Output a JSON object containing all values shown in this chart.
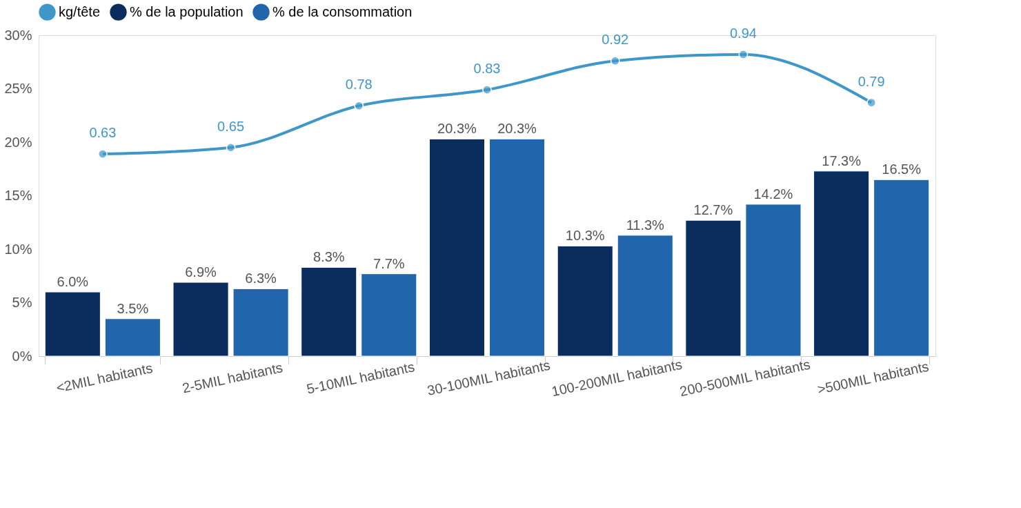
{
  "chart_data": {
    "type": "bar",
    "categories": [
      "<2MIL habitants",
      "2-5MIL habitants",
      "5-10MIL habitants",
      "30-100MIL habitants",
      "100-200MIL habitants",
      "200-500MIL habitants",
      ">500MIL habitants"
    ],
    "series": [
      {
        "name": "kg/tête",
        "type": "line",
        "axis": "y2",
        "color": "#3f97c9",
        "values": [
          0.63,
          0.65,
          0.78,
          0.83,
          0.92,
          0.94,
          0.79
        ],
        "data_labels": true
      },
      {
        "name": "% de la population",
        "color": "#0a2d5e",
        "values": [
          6.0,
          6.9,
          8.3,
          20.3,
          10.3,
          12.7,
          17.3
        ],
        "value_labels": [
          "6.0%",
          "6.9%",
          "8.3%",
          "20.3%",
          "10.3%",
          "12.7%",
          "17.3%"
        ]
      },
      {
        "name": "% de la consommation",
        "color": "#2166ac",
        "values": [
          3.5,
          6.3,
          7.7,
          20.3,
          11.3,
          14.2,
          16.5
        ],
        "value_labels": [
          "3.5%",
          "6.3%",
          "7.7%",
          "20.3%",
          "11.3%",
          "14.2%",
          "16.5%"
        ]
      }
    ],
    "ylim": [
      0,
      30
    ],
    "yticks": [
      {
        "value": 0,
        "label": "0%"
      },
      {
        "value": 5,
        "label": "5%"
      },
      {
        "value": 10,
        "label": "10%"
      },
      {
        "value": 15,
        "label": "15%"
      },
      {
        "value": 20,
        "label": "20%"
      },
      {
        "value": 25,
        "label": "25%"
      },
      {
        "value": 30,
        "label": "30%"
      }
    ],
    "y2lim": [
      0,
      1
    ],
    "grid": false,
    "legend": "top",
    "marker": "circle"
  }
}
